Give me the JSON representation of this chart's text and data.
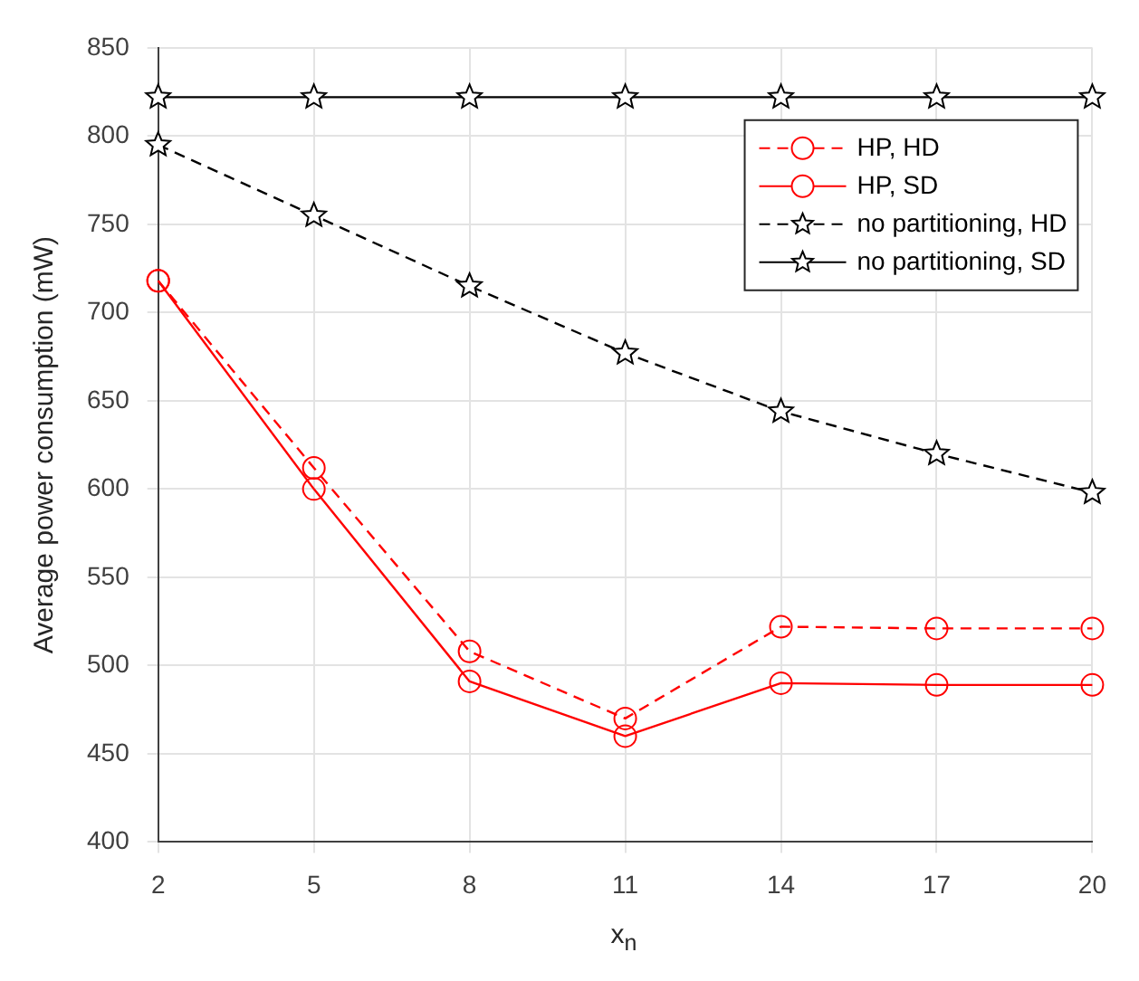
{
  "chart_data": {
    "type": "line",
    "xlabel": "x$_{n}$",
    "ylabel": "Average power consumption (mW)",
    "x": [
      2,
      5,
      8,
      11,
      14,
      17,
      20
    ],
    "xlim": [
      2,
      20
    ],
    "xticks": [
      2,
      5,
      8,
      11,
      14,
      17,
      20
    ],
    "ylim": [
      400,
      850
    ],
    "yticks": [
      400,
      450,
      500,
      550,
      600,
      650,
      700,
      750,
      800,
      850
    ],
    "grid": true,
    "legend": "top right",
    "series": [
      {
        "name": "HP, HD",
        "color": "#ff0000",
        "marker": "circle",
        "line_style": "dashed",
        "values": [
          718,
          612,
          508,
          470,
          522,
          521,
          521
        ]
      },
      {
        "name": "HP, SD",
        "color": "#ff0000",
        "marker": "circle",
        "line_style": "solid",
        "values": [
          718,
          600,
          491,
          460,
          490,
          489,
          489
        ]
      },
      {
        "name": "no partitioning, HD",
        "color": "#000000",
        "marker": "star",
        "line_style": "dashed",
        "values": [
          795,
          755,
          715,
          677,
          644,
          620,
          598
        ]
      },
      {
        "name": "no partitioning, SD",
        "color": "#000000",
        "marker": "star",
        "line_style": "solid",
        "values": [
          822,
          822,
          822,
          822,
          822,
          822,
          822
        ]
      }
    ]
  }
}
